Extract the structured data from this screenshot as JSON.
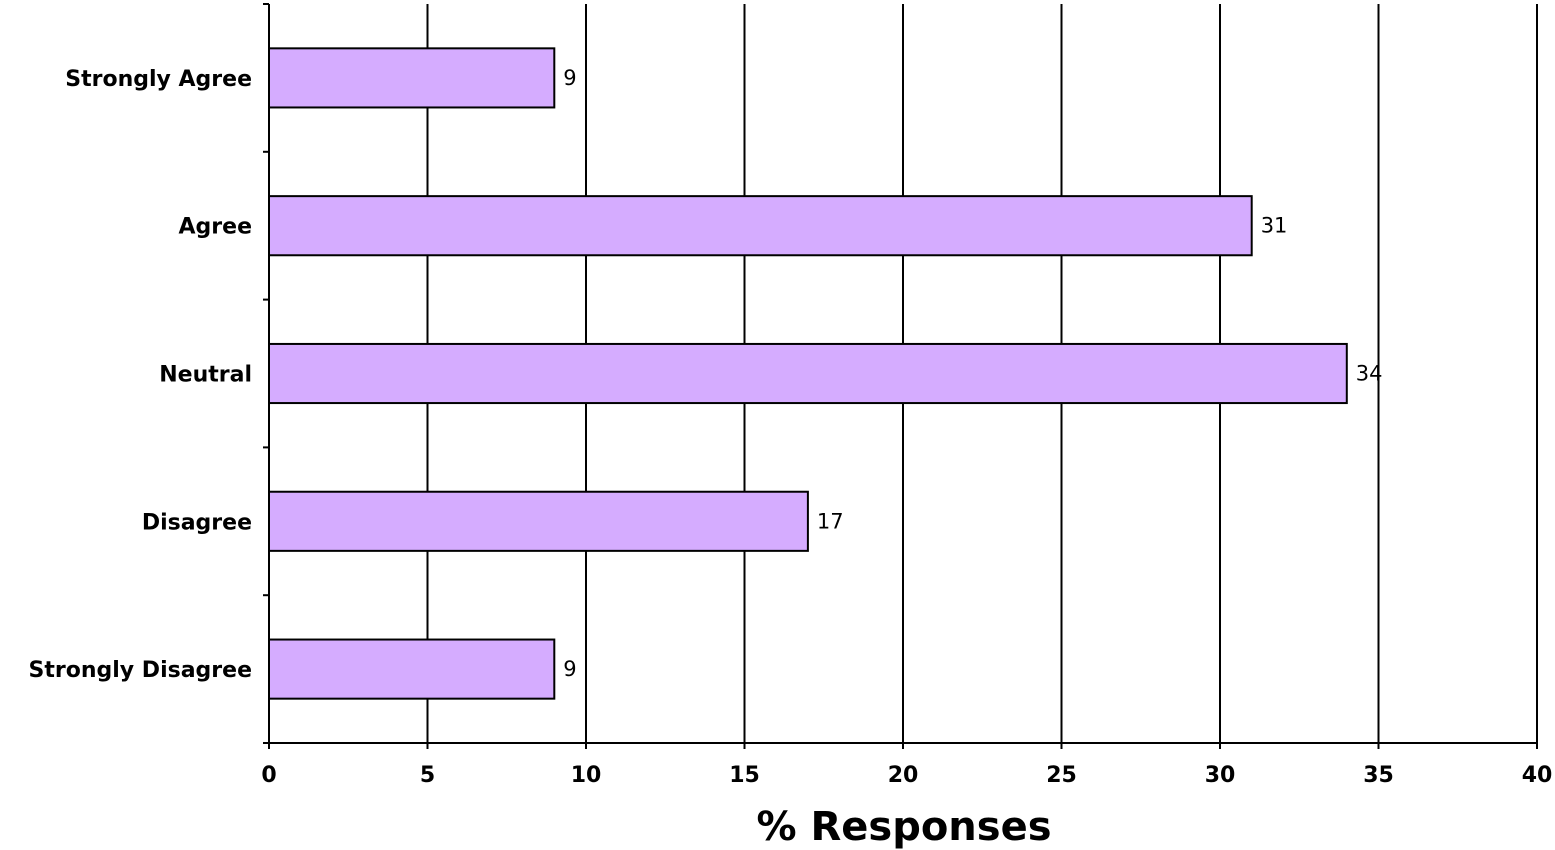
{
  "chart_data": {
    "type": "bar",
    "orientation": "horizontal",
    "categories": [
      "Strongly Agree",
      "Agree",
      "Neutral",
      "Disagree",
      "Strongly Disagree"
    ],
    "values": [
      9,
      31,
      34,
      17,
      9
    ],
    "data_labels": [
      "9",
      "31",
      "34",
      "17",
      "9"
    ],
    "title": "",
    "xlabel": "% Responses",
    "ylabel": "",
    "xlim": [
      0,
      40
    ],
    "x_ticks": [
      0,
      5,
      10,
      15,
      20,
      25,
      30,
      35,
      40
    ],
    "x_tick_labels": [
      "0",
      "5",
      "10",
      "15",
      "20",
      "25",
      "30",
      "35",
      "40"
    ],
    "grid": "vertical major gridlines",
    "legend": "none",
    "colors": {
      "bar_fill": "#d5acff",
      "bar_stroke": "#000000",
      "gridline": "#000000",
      "axis": "#000000"
    }
  }
}
